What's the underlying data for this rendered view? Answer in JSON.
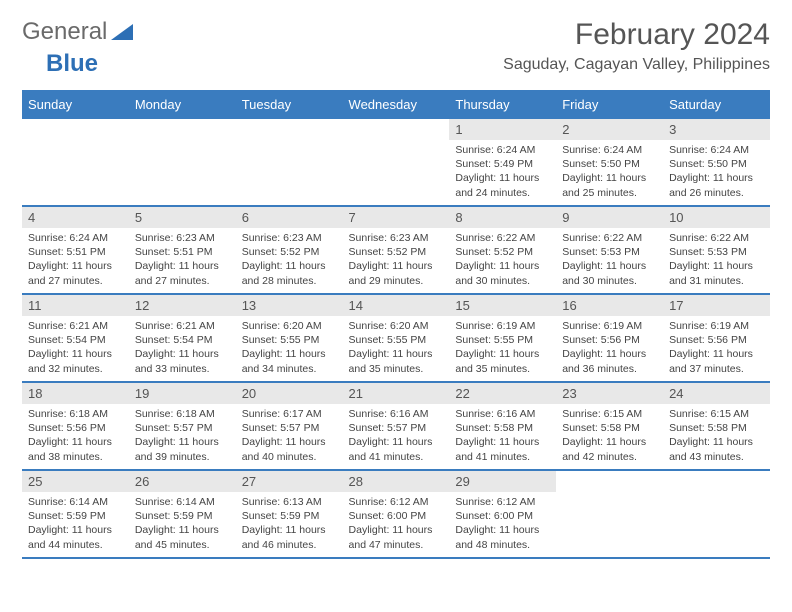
{
  "brand": {
    "text_general": "General",
    "text_blue": "Blue",
    "logo_color": "#2d6fb5"
  },
  "header": {
    "title": "February 2024",
    "location": "Saguday, Cagayan Valley, Philippines"
  },
  "colors": {
    "header_bg": "#3a7cbf",
    "daynum_bg": "#e8e8e8",
    "divider": "#3a7cbf"
  },
  "day_headers": [
    "Sunday",
    "Monday",
    "Tuesday",
    "Wednesday",
    "Thursday",
    "Friday",
    "Saturday"
  ],
  "weeks": [
    [
      null,
      null,
      null,
      null,
      {
        "num": "1",
        "sunrise": "6:24 AM",
        "sunset": "5:49 PM",
        "daylight": "11 hours and 24 minutes."
      },
      {
        "num": "2",
        "sunrise": "6:24 AM",
        "sunset": "5:50 PM",
        "daylight": "11 hours and 25 minutes."
      },
      {
        "num": "3",
        "sunrise": "6:24 AM",
        "sunset": "5:50 PM",
        "daylight": "11 hours and 26 minutes."
      }
    ],
    [
      {
        "num": "4",
        "sunrise": "6:24 AM",
        "sunset": "5:51 PM",
        "daylight": "11 hours and 27 minutes."
      },
      {
        "num": "5",
        "sunrise": "6:23 AM",
        "sunset": "5:51 PM",
        "daylight": "11 hours and 27 minutes."
      },
      {
        "num": "6",
        "sunrise": "6:23 AM",
        "sunset": "5:52 PM",
        "daylight": "11 hours and 28 minutes."
      },
      {
        "num": "7",
        "sunrise": "6:23 AM",
        "sunset": "5:52 PM",
        "daylight": "11 hours and 29 minutes."
      },
      {
        "num": "8",
        "sunrise": "6:22 AM",
        "sunset": "5:52 PM",
        "daylight": "11 hours and 30 minutes."
      },
      {
        "num": "9",
        "sunrise": "6:22 AM",
        "sunset": "5:53 PM",
        "daylight": "11 hours and 30 minutes."
      },
      {
        "num": "10",
        "sunrise": "6:22 AM",
        "sunset": "5:53 PM",
        "daylight": "11 hours and 31 minutes."
      }
    ],
    [
      {
        "num": "11",
        "sunrise": "6:21 AM",
        "sunset": "5:54 PM",
        "daylight": "11 hours and 32 minutes."
      },
      {
        "num": "12",
        "sunrise": "6:21 AM",
        "sunset": "5:54 PM",
        "daylight": "11 hours and 33 minutes."
      },
      {
        "num": "13",
        "sunrise": "6:20 AM",
        "sunset": "5:55 PM",
        "daylight": "11 hours and 34 minutes."
      },
      {
        "num": "14",
        "sunrise": "6:20 AM",
        "sunset": "5:55 PM",
        "daylight": "11 hours and 35 minutes."
      },
      {
        "num": "15",
        "sunrise": "6:19 AM",
        "sunset": "5:55 PM",
        "daylight": "11 hours and 35 minutes."
      },
      {
        "num": "16",
        "sunrise": "6:19 AM",
        "sunset": "5:56 PM",
        "daylight": "11 hours and 36 minutes."
      },
      {
        "num": "17",
        "sunrise": "6:19 AM",
        "sunset": "5:56 PM",
        "daylight": "11 hours and 37 minutes."
      }
    ],
    [
      {
        "num": "18",
        "sunrise": "6:18 AM",
        "sunset": "5:56 PM",
        "daylight": "11 hours and 38 minutes."
      },
      {
        "num": "19",
        "sunrise": "6:18 AM",
        "sunset": "5:57 PM",
        "daylight": "11 hours and 39 minutes."
      },
      {
        "num": "20",
        "sunrise": "6:17 AM",
        "sunset": "5:57 PM",
        "daylight": "11 hours and 40 minutes."
      },
      {
        "num": "21",
        "sunrise": "6:16 AM",
        "sunset": "5:57 PM",
        "daylight": "11 hours and 41 minutes."
      },
      {
        "num": "22",
        "sunrise": "6:16 AM",
        "sunset": "5:58 PM",
        "daylight": "11 hours and 41 minutes."
      },
      {
        "num": "23",
        "sunrise": "6:15 AM",
        "sunset": "5:58 PM",
        "daylight": "11 hours and 42 minutes."
      },
      {
        "num": "24",
        "sunrise": "6:15 AM",
        "sunset": "5:58 PM",
        "daylight": "11 hours and 43 minutes."
      }
    ],
    [
      {
        "num": "25",
        "sunrise": "6:14 AM",
        "sunset": "5:59 PM",
        "daylight": "11 hours and 44 minutes."
      },
      {
        "num": "26",
        "sunrise": "6:14 AM",
        "sunset": "5:59 PM",
        "daylight": "11 hours and 45 minutes."
      },
      {
        "num": "27",
        "sunrise": "6:13 AM",
        "sunset": "5:59 PM",
        "daylight": "11 hours and 46 minutes."
      },
      {
        "num": "28",
        "sunrise": "6:12 AM",
        "sunset": "6:00 PM",
        "daylight": "11 hours and 47 minutes."
      },
      {
        "num": "29",
        "sunrise": "6:12 AM",
        "sunset": "6:00 PM",
        "daylight": "11 hours and 48 minutes."
      },
      null,
      null
    ]
  ],
  "labels": {
    "sunrise": "Sunrise: ",
    "sunset": "Sunset: ",
    "daylight": "Daylight: "
  }
}
